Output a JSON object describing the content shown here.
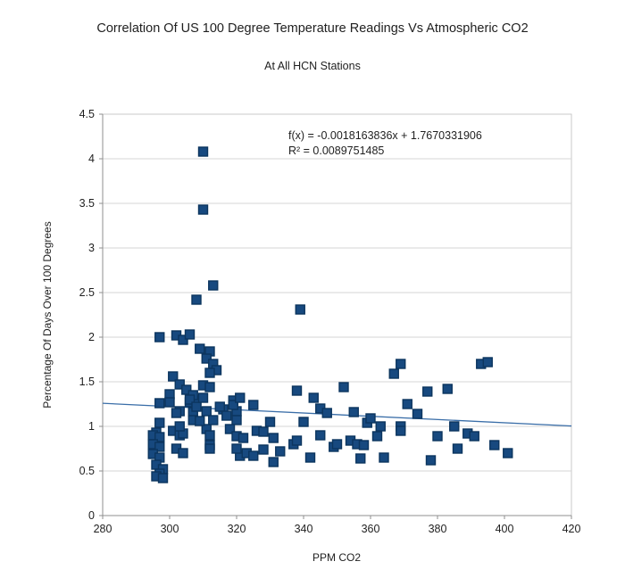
{
  "title": "Correlation Of US 100 Degree Temperature Readings Vs Atmospheric CO2",
  "subtitle": "At All HCN Stations",
  "annotation": {
    "equation": "f(x) = -0.0018163836x + 1.7670331906",
    "r_squared": "R² = 0.0089751485"
  },
  "colors": {
    "point_fill": "#17497f",
    "point_border": "#0c355e",
    "trendline": "#3a6ea8",
    "gridline": "#d6d6d6",
    "plot_border": "#c9c9c9",
    "axis": "#8f8f8f",
    "text": "#1f1f1f"
  },
  "chart_data": {
    "type": "scatter",
    "title": "Correlation Of US 100 Degree Temperature Readings Vs Atmospheric CO2",
    "subtitle": "At All HCN Stations",
    "xlabel": "PPM CO2",
    "ylabel": "Percentage Of Days Over 100 Degrees",
    "xlim": [
      280,
      420
    ],
    "ylim": [
      0,
      4.5
    ],
    "x_ticks": [
      "280",
      "300",
      "320",
      "340",
      "360",
      "380",
      "400",
      "420"
    ],
    "y_ticks": [
      "0",
      "0.5",
      "1",
      "1.5",
      "2",
      "2.5",
      "3",
      "3.5",
      "4",
      "4.5"
    ],
    "grid": "horizontal",
    "legend": "none",
    "marker": "square",
    "trendline": {
      "slope": -0.0018163836,
      "intercept": 1.7670331906,
      "r2": 0.0089751485
    },
    "points": [
      [
        310,
        4.08
      ],
      [
        310,
        3.43
      ],
      [
        313,
        2.58
      ],
      [
        308,
        2.42
      ],
      [
        339,
        2.31
      ],
      [
        297,
        2.0
      ],
      [
        302,
        2.02
      ],
      [
        304,
        1.97
      ],
      [
        306,
        2.03
      ],
      [
        309,
        1.87
      ],
      [
        312,
        1.84
      ],
      [
        311,
        1.76
      ],
      [
        313,
        1.7
      ],
      [
        314,
        1.63
      ],
      [
        312,
        1.6
      ],
      [
        301,
        1.56
      ],
      [
        303,
        1.47
      ],
      [
        305,
        1.41
      ],
      [
        310,
        1.46
      ],
      [
        312,
        1.44
      ],
      [
        297,
        1.26
      ],
      [
        300,
        1.36
      ],
      [
        300,
        1.27
      ],
      [
        306,
        1.27
      ],
      [
        308,
        1.29
      ],
      [
        307,
        1.35
      ],
      [
        303,
        1.17
      ],
      [
        307,
        1.16
      ],
      [
        311,
        1.17
      ],
      [
        316,
        1.19
      ],
      [
        319,
        1.29
      ],
      [
        320,
        1.17
      ],
      [
        306,
        1.3
      ],
      [
        308,
        1.22
      ],
      [
        310,
        1.32
      ],
      [
        315,
        1.22
      ],
      [
        317,
        1.12
      ],
      [
        319,
        1.24
      ],
      [
        321,
        1.32
      ],
      [
        325,
        1.24
      ],
      [
        320,
        1.07
      ],
      [
        318,
        0.97
      ],
      [
        320,
        0.89
      ],
      [
        322,
        0.87
      ],
      [
        321,
        0.67
      ],
      [
        323,
        0.7
      ],
      [
        325,
        0.67
      ],
      [
        320,
        0.75
      ],
      [
        297,
        1.04
      ],
      [
        296,
        0.93
      ],
      [
        295,
        0.9
      ],
      [
        297,
        0.88
      ],
      [
        295,
        0.8
      ],
      [
        297,
        0.77
      ],
      [
        295,
        0.69
      ],
      [
        297,
        0.65
      ],
      [
        296,
        0.57
      ],
      [
        298,
        0.52
      ],
      [
        297,
        0.47
      ],
      [
        296,
        0.44
      ],
      [
        298,
        0.42
      ],
      [
        301,
        0.95
      ],
      [
        303,
        0.9
      ],
      [
        302,
        0.75
      ],
      [
        304,
        0.7
      ],
      [
        304,
        0.92
      ],
      [
        303,
        1.0
      ],
      [
        302,
        1.15
      ],
      [
        311,
        0.97
      ],
      [
        312,
        0.9
      ],
      [
        312,
        0.79
      ],
      [
        312,
        0.75
      ],
      [
        307,
        1.07
      ],
      [
        309,
        1.06
      ],
      [
        313,
        1.07
      ],
      [
        326,
        0.95
      ],
      [
        328,
        0.94
      ],
      [
        328,
        0.74
      ],
      [
        330,
        1.05
      ],
      [
        331,
        0.87
      ],
      [
        331,
        0.6
      ],
      [
        333,
        0.72
      ],
      [
        337,
        0.8
      ],
      [
        338,
        0.84
      ],
      [
        340,
        1.05
      ],
      [
        342,
        0.65
      ],
      [
        343,
        1.32
      ],
      [
        345,
        1.2
      ],
      [
        345,
        0.9
      ],
      [
        347,
        1.15
      ],
      [
        349,
        0.77
      ],
      [
        350,
        0.8
      ],
      [
        338,
        1.4
      ],
      [
        352,
        1.44
      ],
      [
        354,
        0.84
      ],
      [
        355,
        1.16
      ],
      [
        356,
        0.8
      ],
      [
        357,
        0.64
      ],
      [
        358,
        0.79
      ],
      [
        359,
        1.04
      ],
      [
        360,
        1.09
      ],
      [
        362,
        0.89
      ],
      [
        363,
        1.0
      ],
      [
        364,
        0.65
      ],
      [
        367,
        1.59
      ],
      [
        369,
        1.7
      ],
      [
        369,
        1.0
      ],
      [
        369,
        0.95
      ],
      [
        371,
        1.25
      ],
      [
        374,
        1.14
      ],
      [
        377,
        1.39
      ],
      [
        378,
        0.62
      ],
      [
        380,
        0.89
      ],
      [
        383,
        1.42
      ],
      [
        385,
        1.0
      ],
      [
        386,
        0.75
      ],
      [
        389,
        0.92
      ],
      [
        391,
        0.89
      ],
      [
        393,
        1.7
      ],
      [
        395,
        1.72
      ],
      [
        397,
        0.79
      ],
      [
        401,
        0.7
      ]
    ]
  }
}
